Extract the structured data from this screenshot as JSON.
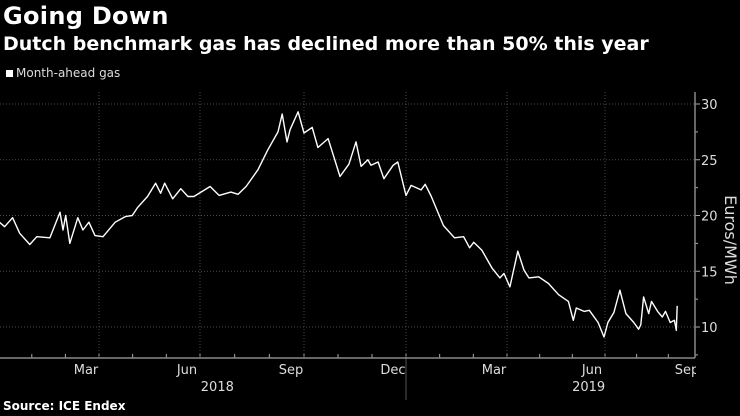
{
  "header": {
    "title": "Going Down",
    "subtitle": "Dutch benchmark gas has declined more than 50% this year",
    "legend": "Month-ahead gas"
  },
  "footer": {
    "source": "Source: ICE Endex"
  },
  "colors": {
    "background": "#000000",
    "line": "#ffffff",
    "grid": "#555555"
  },
  "chart_data": {
    "type": "line",
    "title": "Going Down",
    "subtitle": "Dutch benchmark gas has declined more than 50% this year",
    "xlabel": "",
    "ylabel": "Euros/MWh",
    "x_unit": "months since Jan 2018 (0 = Jan 2018)",
    "ylim": [
      7.3,
      31
    ],
    "yticks": [
      10,
      15,
      20,
      25,
      30
    ],
    "xticks": [
      {
        "x": 2,
        "label": "Mar"
      },
      {
        "x": 5,
        "label": "Jun"
      },
      {
        "x": 8,
        "label": "Sep"
      },
      {
        "x": 11,
        "label": "Dec"
      },
      {
        "x": 14,
        "label": "Mar"
      },
      {
        "x": 17,
        "label": "Jun"
      },
      {
        "x": 20,
        "label": "Sep"
      }
    ],
    "year_labels": [
      {
        "x": 5.5,
        "label": "2018"
      },
      {
        "x": 16.5,
        "label": "2019"
      }
    ],
    "grid": true,
    "legend_position": "top-left",
    "series": [
      {
        "name": "Month-ahead gas",
        "x": [
          -0.96,
          -0.81,
          -0.57,
          -0.36,
          -0.06,
          0.15,
          0.54,
          0.84,
          0.93,
          1.01,
          1.13,
          1.37,
          1.52,
          1.7,
          1.88,
          2.12,
          2.48,
          2.78,
          2.99,
          3.14,
          3.44,
          3.68,
          3.83,
          3.95,
          4.19,
          4.43,
          4.64,
          4.82,
          5.03,
          5.29,
          5.55,
          5.89,
          6.1,
          6.33,
          6.67,
          6.96,
          7.25,
          7.37,
          7.51,
          7.6,
          7.83,
          8.0,
          8.24,
          8.41,
          8.71,
          9.06,
          9.32,
          9.53,
          9.68,
          9.88,
          9.97,
          10.18,
          10.35,
          10.62,
          10.76,
          11.0,
          11.15,
          11.45,
          11.57,
          11.75,
          12.11,
          12.44,
          12.71,
          12.89,
          13.01,
          13.25,
          13.55,
          13.79,
          13.91,
          14.09,
          14.33,
          14.52,
          14.67,
          14.97,
          15.27,
          15.58,
          15.88,
          16.03,
          16.12,
          16.36,
          16.52,
          16.79,
          16.97,
          17.09,
          17.28,
          17.47,
          17.66,
          17.91,
          18.06,
          18.13,
          18.22,
          18.38,
          18.47,
          18.66,
          18.81,
          18.91,
          19.06,
          19.19,
          19.25,
          19.28
        ],
        "values": [
          19.4,
          19.0,
          19.8,
          18.4,
          17.4,
          18.1,
          18.0,
          20.3,
          18.7,
          20.0,
          17.5,
          19.8,
          18.7,
          19.4,
          18.2,
          18.1,
          19.4,
          19.9,
          20.0,
          20.7,
          21.7,
          22.9,
          22.0,
          22.9,
          21.5,
          22.4,
          21.7,
          21.7,
          22.1,
          22.6,
          21.8,
          22.1,
          21.9,
          22.6,
          24.1,
          25.9,
          27.5,
          29.1,
          26.6,
          27.7,
          29.3,
          27.4,
          27.9,
          26.1,
          26.9,
          23.5,
          24.6,
          26.6,
          24.4,
          25.0,
          24.5,
          24.8,
          23.3,
          24.5,
          24.8,
          21.8,
          22.7,
          22.3,
          22.8,
          21.7,
          19.1,
          18.0,
          18.1,
          17.1,
          17.6,
          16.9,
          15.3,
          14.4,
          14.8,
          13.6,
          16.8,
          15.1,
          14.4,
          14.5,
          13.9,
          12.9,
          12.3,
          10.6,
          11.7,
          11.4,
          11.5,
          10.4,
          9.1,
          10.4,
          11.3,
          13.3,
          11.2,
          10.4,
          9.8,
          10.2,
          12.7,
          11.2,
          12.3,
          11.4,
          10.9,
          11.4,
          10.4,
          10.6,
          9.7,
          11.9
        ]
      }
    ]
  }
}
